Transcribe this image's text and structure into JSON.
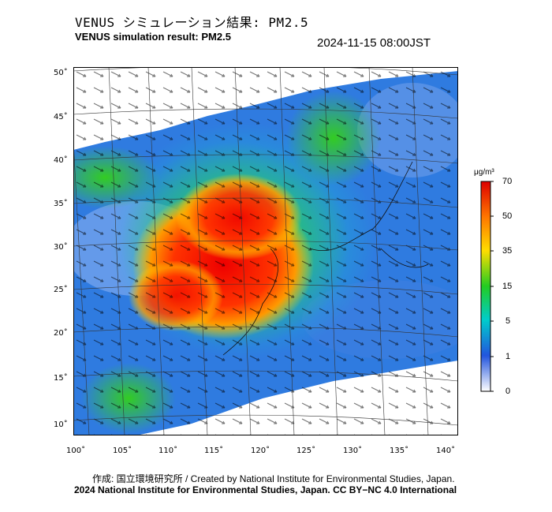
{
  "title_jp": "VENUS シミュレーション結果: PM2.5",
  "title_en": "VENUS simulation result: PM2.5",
  "timestamp": "2024-11-15 08:00JST",
  "map": {
    "lat_labels": [
      "50˚",
      "45˚",
      "40˚",
      "35˚",
      "30˚",
      "25˚",
      "20˚",
      "15˚",
      "10˚"
    ],
    "lon_labels": [
      "100˚",
      "105˚",
      "110˚",
      "115˚",
      "120˚",
      "125˚",
      "130˚",
      "135˚",
      "140˚"
    ]
  },
  "colorbar": {
    "unit": "μg/m³",
    "ticks": [
      "70",
      "50",
      "35",
      "15",
      "5",
      "1",
      "0"
    ],
    "colors": [
      "#ff0000",
      "#ff9900",
      "#ffee00",
      "#22cc22",
      "#00cccc",
      "#2266dd",
      "#ffffff"
    ]
  },
  "footer": {
    "credit": "作成: 国立環境研究所 / Created by National Institute for Environmental Studies, Japan.",
    "copyright": "2024 National Institute for Environmental Studies, Japan. CC BY−NC 4.0 International"
  }
}
